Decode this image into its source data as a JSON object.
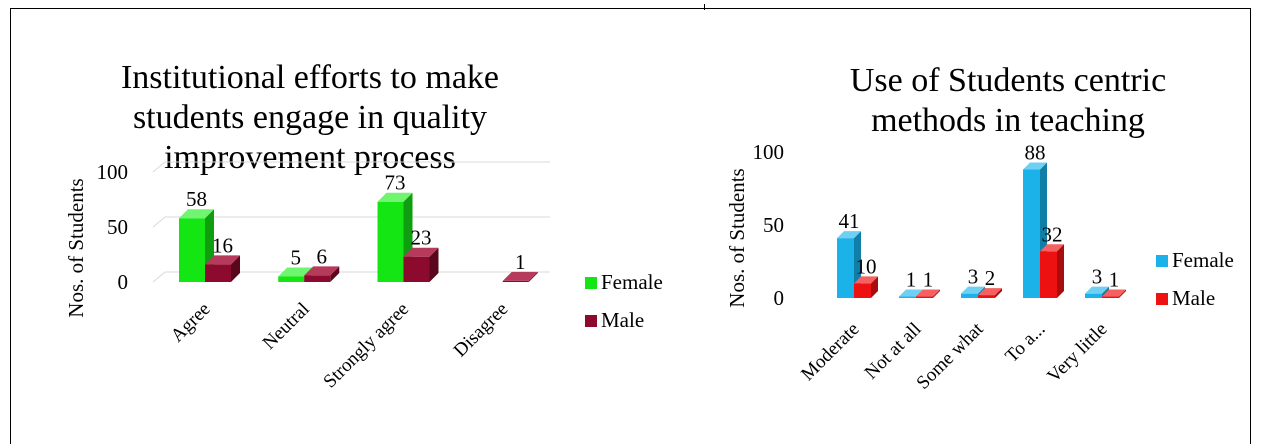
{
  "chart_data": [
    {
      "type": "bar",
      "title": [
        "Institutional efforts to make",
        "students engage in quality",
        "improvement process"
      ],
      "ylabel": "Nos. of Students",
      "ylim": [
        0,
        100
      ],
      "yticks": [
        0,
        50,
        100
      ],
      "categories": [
        "Agree",
        "Neutral",
        "Strongly agree",
        "Disagree"
      ],
      "series": [
        {
          "name": "Female",
          "values": [
            58,
            5,
            73,
            null
          ],
          "labels": [
            "58",
            "5",
            "73",
            ""
          ],
          "color": "#14e614",
          "dark": "#0f9e0f",
          "top": "#6ff56f"
        },
        {
          "name": "Male",
          "values": [
            16,
            6,
            23,
            1
          ],
          "labels": [
            "16",
            "6",
            "23",
            "1"
          ],
          "color": "#8b0a2e",
          "dark": "#5a061d",
          "top": "#b53a5c"
        }
      ],
      "legend": "right",
      "grid": true
    },
    {
      "type": "bar",
      "title": [
        "Use of Students centric",
        "methods in teaching"
      ],
      "ylabel": "Nos. of Students",
      "ylim": [
        0,
        100
      ],
      "yticks": [
        0,
        50,
        100
      ],
      "categories": [
        "Moderate",
        "Not at all",
        "Some what",
        "To a...",
        "Very little"
      ],
      "series": [
        {
          "name": "Female",
          "values": [
            41,
            1,
            3,
            88,
            3
          ],
          "labels": [
            "41",
            "1",
            "3",
            "88",
            "3"
          ],
          "color": "#1ab2e8",
          "dark": "#0f7fa8",
          "top": "#6fd0f3"
        },
        {
          "name": "Male",
          "values": [
            10,
            1,
            2,
            32,
            1
          ],
          "labels": [
            "10",
            "1",
            "2",
            "32",
            "1"
          ],
          "color": "#ee1111",
          "dark": "#a80c0c",
          "top": "#f56060"
        }
      ],
      "legend": "right",
      "grid": false
    }
  ]
}
